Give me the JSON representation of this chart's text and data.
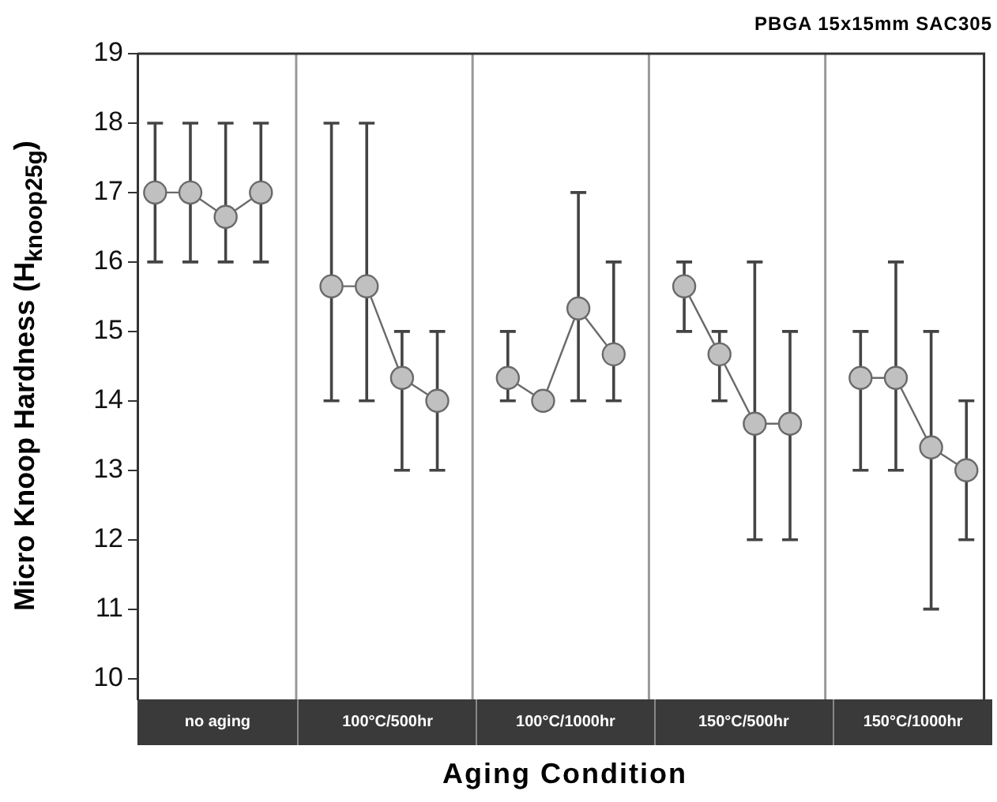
{
  "chart_data": {
    "type": "line",
    "title": "PBGA 15x15mm SAC305",
    "xlabel": "Aging Condition",
    "ylabel": "Micro Knoop Hardness (H$_{knoop25g}$)",
    "categories": [
      null,
      null,
      null,
      null,
      null,
      null,
      null,
      null,
      null,
      null,
      null,
      null,
      null,
      null,
      null,
      null,
      null,
      null,
      null,
      null,
      null,
      null,
      null,
      null
    ],
    "annotations": [
      "no aging",
      "100°C/500hr",
      "100°C/1000hr",
      "150°C/500hr",
      "150°C/1000hr"
    ],
    "series": [
      {
        "color": "#6a6a6a",
        "values": [
          17,
          17,
          16.65,
          17,
          null,
          15.65,
          15.65,
          14.33,
          14,
          null,
          14.33,
          14,
          15.33,
          14.67,
          null,
          15.65,
          14.67,
          13.67,
          13.67,
          null,
          14.33,
          14.33,
          13.33,
          13
        ],
        "errors": [
          [
            16,
            18
          ],
          [
            16,
            18
          ],
          [
            16,
            18
          ],
          [
            16,
            18
          ],
          null,
          [
            14,
            18
          ],
          [
            14,
            18
          ],
          [
            13,
            15
          ],
          [
            13,
            15
          ],
          null,
          [
            14,
            15
          ],
          null,
          [
            14,
            17
          ],
          [
            14,
            16
          ],
          null,
          [
            15,
            16
          ],
          [
            14,
            15
          ],
          [
            12,
            16
          ],
          [
            12,
            15
          ],
          null,
          [
            13,
            15
          ],
          [
            13,
            16
          ],
          [
            11,
            15
          ],
          [
            12,
            14
          ]
        ]
      }
    ],
    "ylim": [
      9.7,
      19
    ],
    "yticks": [
      10,
      11,
      12,
      13,
      14,
      15,
      16,
      17,
      18,
      19
    ],
    "tick_labels": "y",
    "grid": "x",
    "marker": "circle",
    "line_style": "solid"
  }
}
